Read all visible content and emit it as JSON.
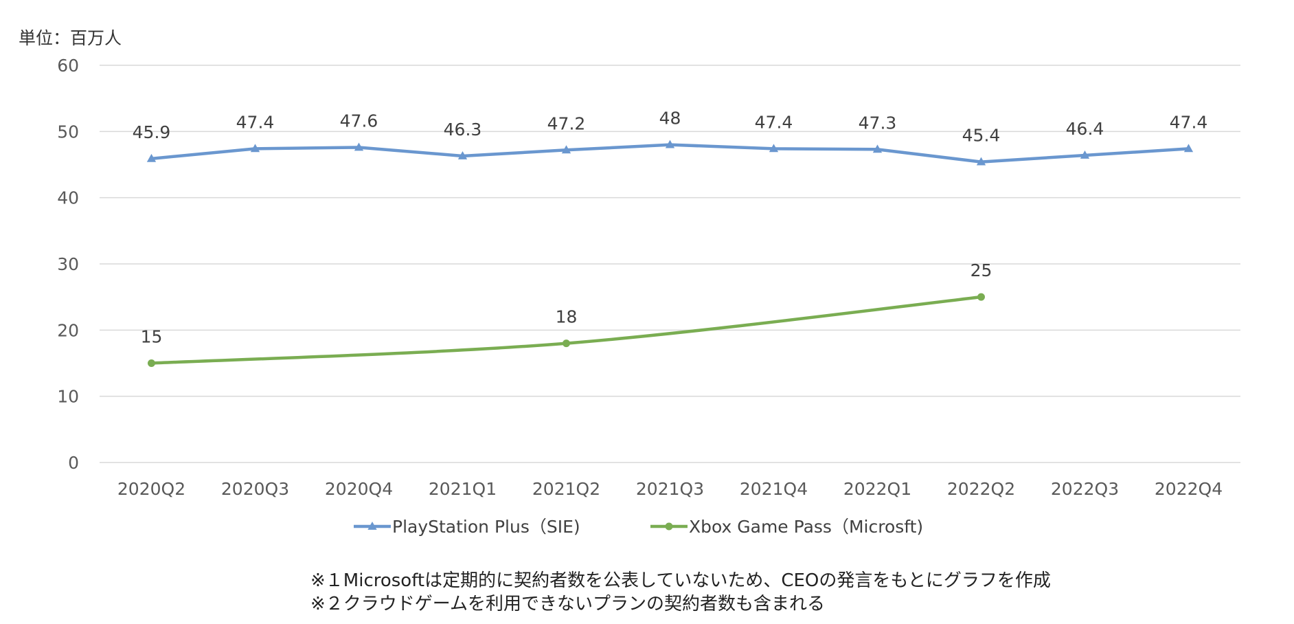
{
  "unit_label": "単位：百万人",
  "notes": [
    "※１Microsoftは定期的に契約者数を公表していないため、CEOの発言をもとにグラフを作成",
    "※２クラウドゲームを利用できないプランの契約者数も含まれる"
  ],
  "colors": {
    "playstation": "#6a97cf",
    "xbox": "#7aad52",
    "grid": "#d9d9d9",
    "axis_text": "#595959",
    "label_text": "#404040"
  },
  "chart_data": {
    "type": "line",
    "title": "",
    "ylabel": "",
    "xlabel": "",
    "categories": [
      "2020Q2",
      "2020Q3",
      "2020Q4",
      "2021Q1",
      "2021Q2",
      "2021Q3",
      "2021Q4",
      "2022Q1",
      "2022Q2",
      "2022Q3",
      "2022Q4"
    ],
    "ylim": [
      0,
      60
    ],
    "yticks": [
      0,
      10,
      20,
      30,
      40,
      50,
      60
    ],
    "grid": true,
    "legend": "bottom",
    "series": [
      {
        "name": "PlayStation Plus（SIE)",
        "marker": "triangle",
        "color": "#6a97cf",
        "values": [
          45.9,
          47.4,
          47.6,
          46.3,
          47.2,
          48,
          47.4,
          47.3,
          45.4,
          46.4,
          47.4
        ],
        "labels": [
          "45.9",
          "47.4",
          "47.6",
          "46.3",
          "47.2",
          "48",
          "47.4",
          "47.3",
          "45.4",
          "46.4",
          "47.4"
        ]
      },
      {
        "name": "Xbox Game Pass（Microsft)",
        "marker": "circle",
        "color": "#7aad52",
        "points": [
          {
            "x": "2020Q2",
            "y": 15,
            "label": "15"
          },
          {
            "x": "2021Q2",
            "y": 18,
            "label": "18"
          },
          {
            "x": "2022Q2",
            "y": 25,
            "label": "25"
          }
        ]
      }
    ]
  }
}
